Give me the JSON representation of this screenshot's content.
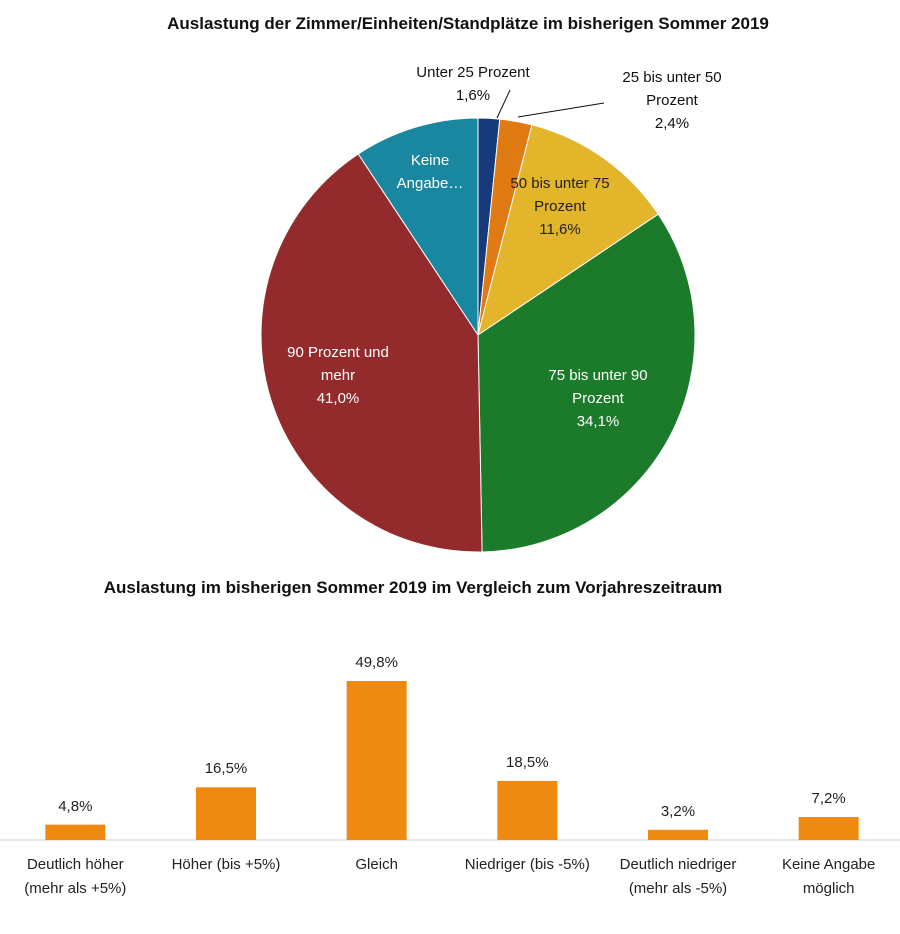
{
  "chart_data": [
    {
      "type": "pie",
      "title": "Auslastung der Zimmer/Einheiten/Standplätze im bisherigen Sommer 2019",
      "categories": [
        "Unter 25 Prozent",
        "25 bis unter 50 Prozent",
        "50 bis unter 75 Prozent",
        "75 bis unter 90 Prozent",
        "90 Prozent und mehr",
        "Keine Angabe…"
      ],
      "values": [
        1.6,
        2.4,
        11.6,
        34.1,
        41.0,
        9.3
      ],
      "value_labels": [
        "1,6%",
        "2,4%",
        "11,6%",
        "34,1%",
        "41,0%",
        null
      ],
      "colors": [
        "#173a7a",
        "#e07a12",
        "#e2b52b",
        "#1c7a2b",
        "#932a2b",
        "#1a87a1"
      ]
    },
    {
      "type": "bar",
      "title": "Auslastung im bisherigen Sommer 2019 im Vergleich zum Vorjahreszeitraum",
      "categories": [
        "Deutlich höher (mehr als +5%)",
        "Höher (bis +5%)",
        "Gleich",
        "Niedriger (bis -5%)",
        "Deutlich niedriger (mehr als -5%)",
        "Keine Angabe möglich"
      ],
      "values": [
        4.8,
        16.5,
        49.8,
        18.5,
        3.2,
        7.2
      ],
      "value_labels": [
        "4,8%",
        "16,5%",
        "49,8%",
        "18,5%",
        "3,2%",
        "7,2%"
      ],
      "color": "#ee8a10"
    }
  ]
}
